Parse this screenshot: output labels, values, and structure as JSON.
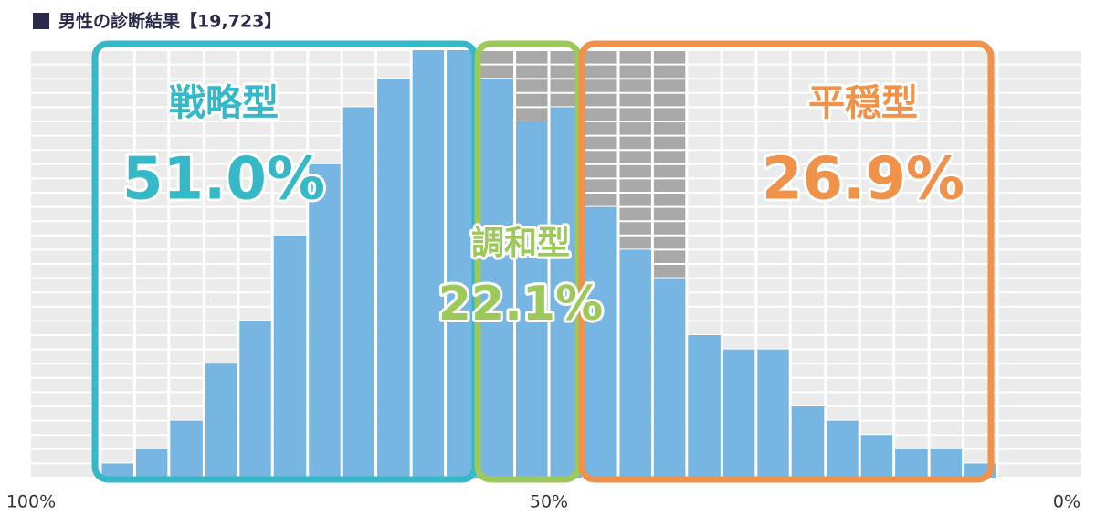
{
  "chart_data": {
    "type": "histogram",
    "title": "男性の診断結果【19,723】",
    "bins": [
      93.3,
      90.0,
      86.7,
      83.3,
      80.0,
      76.7,
      73.3,
      70.0,
      66.7,
      63.3,
      60.0,
      56.7,
      53.3,
      50.0,
      46.7,
      43.3,
      40.0,
      36.7,
      33.3,
      30.0,
      26.7,
      23.3,
      20.0,
      16.7,
      13.3,
      10.0,
      6.7
    ],
    "values": [
      1,
      2,
      4,
      8,
      11,
      17,
      22,
      26,
      28,
      30,
      30,
      28,
      25,
      26,
      19,
      16,
      14,
      10,
      9,
      9,
      5,
      4,
      3,
      2,
      2,
      1
    ],
    "color": "#77b6e2",
    "xlim": [
      100,
      0
    ],
    "xticks": [
      {
        "value": 100,
        "label": "100%"
      },
      {
        "value": 50,
        "label": "50%"
      },
      {
        "value": 0,
        "label": "0%"
      }
    ],
    "ylim": [
      0,
      30
    ],
    "grid": true,
    "annotations": [
      {
        "name": "戦略型",
        "share": "51.0%",
        "color": "#35b8c8"
      },
      {
        "name": "調和型",
        "share": "22.1%",
        "color": "#9cc95a"
      },
      {
        "name": "平穏型",
        "share": "26.9%",
        "color": "#f0924a"
      }
    ]
  }
}
